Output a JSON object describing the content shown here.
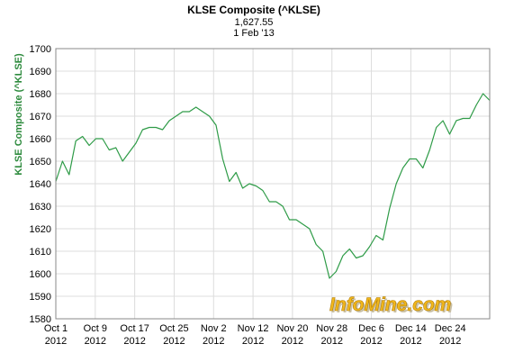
{
  "chart_data": {
    "type": "line",
    "title": "KLSE Composite (^KLSE)",
    "subtitle_value": "1,627.55",
    "subtitle_date": "1 Feb '13",
    "ylabel": "KLSE Composite (^KLSE)",
    "xlabel": "",
    "ylim": [
      1580,
      1700
    ],
    "yticks": [
      1580,
      1590,
      1600,
      1610,
      1620,
      1630,
      1640,
      1650,
      1660,
      1670,
      1680,
      1690,
      1700
    ],
    "x_tick_labels": [
      {
        "line1": "Oct 1",
        "line2": "2012"
      },
      {
        "line1": "Oct 9",
        "line2": "2012"
      },
      {
        "line1": "Oct 17",
        "line2": "2012"
      },
      {
        "line1": "Oct 25",
        "line2": "2012"
      },
      {
        "line1": "Nov 2",
        "line2": "2012"
      },
      {
        "line1": "Nov 12",
        "line2": "2012"
      },
      {
        "line1": "Nov 20",
        "line2": "2012"
      },
      {
        "line1": "Nov 28",
        "line2": "2012"
      },
      {
        "line1": "Dec 6",
        "line2": "2012"
      },
      {
        "line1": "Dec 14",
        "line2": "2012"
      },
      {
        "line1": "Dec 24",
        "line2": "2012"
      }
    ],
    "grid": true,
    "line_color": "#2e9b47",
    "label_color": "#2e8b3e",
    "series": [
      {
        "values": [
          1641,
          1650,
          1644,
          1659,
          1661,
          1657,
          1660,
          1660,
          1655,
          1656,
          1650,
          1654,
          1658,
          1664,
          1665,
          1665,
          1664,
          1668,
          1670,
          1672,
          1672,
          1674,
          1672,
          1670,
          1666,
          1651,
          1641,
          1645,
          1638,
          1640,
          1639,
          1637,
          1632,
          1632,
          1630,
          1624,
          1624,
          1622,
          1620,
          1613,
          1610,
          1598,
          1601,
          1608,
          1611,
          1607,
          1608,
          1612,
          1617,
          1615,
          1629,
          1640,
          1647,
          1651,
          1651,
          1647,
          1655,
          1665,
          1668,
          1662,
          1668,
          1669,
          1669,
          1675,
          1680,
          1677
        ]
      }
    ]
  },
  "watermark": {
    "text": "InfoMine.com"
  }
}
